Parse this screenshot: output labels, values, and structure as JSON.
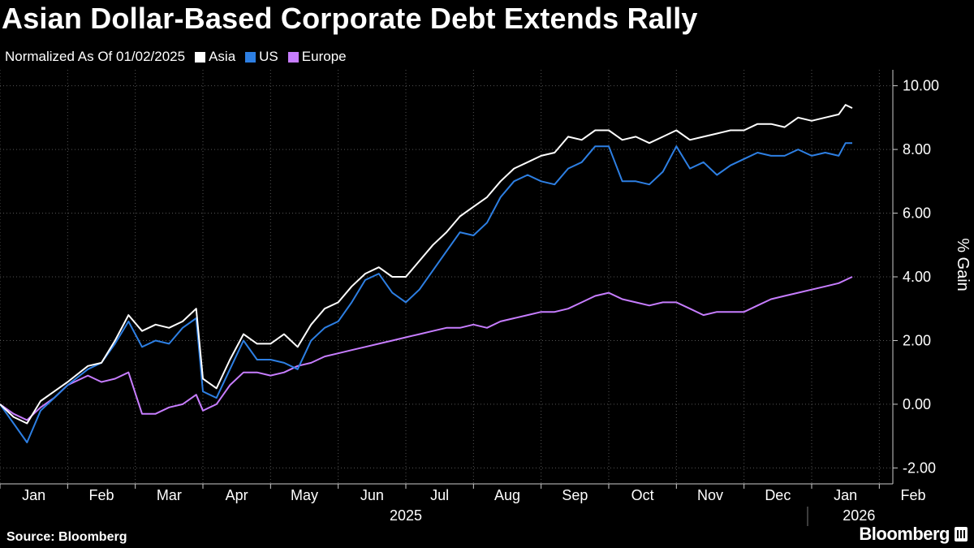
{
  "title": "Asian Dollar-Based Corporate Debt Extends Rally",
  "subtitle": "Normalized As Of 01/02/2025",
  "source": "Source: Bloomberg",
  "brand": "Bloomberg",
  "chart_data": {
    "type": "line",
    "ylabel": "% Gain",
    "ylim": [
      -2.5,
      10.5
    ],
    "yticks": [
      -2,
      0,
      2,
      4,
      6,
      8,
      10
    ],
    "ytick_labels": [
      "-2.00",
      "0.00",
      "2.00",
      "4.00",
      "6.00",
      "8.00",
      "10.00"
    ],
    "month_labels": [
      "Jan",
      "Feb",
      "Mar",
      "Apr",
      "May",
      "Jun",
      "Jul",
      "Aug",
      "Sep",
      "Oct",
      "Nov",
      "Dec",
      "Jan",
      "Feb"
    ],
    "year_labels": [
      "2025",
      "2026"
    ],
    "x_unit": "months since 01/02/2025",
    "grid": true,
    "series": [
      {
        "name": "Asia",
        "color": "#ffffff",
        "points": [
          [
            0,
            0
          ],
          [
            0.2,
            -0.4
          ],
          [
            0.4,
            -0.6
          ],
          [
            0.6,
            0.1
          ],
          [
            0.8,
            0.4
          ],
          [
            1,
            0.7
          ],
          [
            1.3,
            1.2
          ],
          [
            1.5,
            1.3
          ],
          [
            1.7,
            2.0
          ],
          [
            1.9,
            2.8
          ],
          [
            2.1,
            2.3
          ],
          [
            2.3,
            2.5
          ],
          [
            2.5,
            2.4
          ],
          [
            2.7,
            2.6
          ],
          [
            2.9,
            3.0
          ],
          [
            3.0,
            0.8
          ],
          [
            3.2,
            0.5
          ],
          [
            3.4,
            1.4
          ],
          [
            3.6,
            2.2
          ],
          [
            3.8,
            1.9
          ],
          [
            4.0,
            1.9
          ],
          [
            4.2,
            2.2
          ],
          [
            4.4,
            1.8
          ],
          [
            4.6,
            2.5
          ],
          [
            4.8,
            3.0
          ],
          [
            5.0,
            3.2
          ],
          [
            5.2,
            3.7
          ],
          [
            5.4,
            4.1
          ],
          [
            5.6,
            4.3
          ],
          [
            5.8,
            4.0
          ],
          [
            6.0,
            4.0
          ],
          [
            6.2,
            4.5
          ],
          [
            6.4,
            5.0
          ],
          [
            6.6,
            5.4
          ],
          [
            6.8,
            5.9
          ],
          [
            7.0,
            6.2
          ],
          [
            7.2,
            6.5
          ],
          [
            7.4,
            7.0
          ],
          [
            7.6,
            7.4
          ],
          [
            7.8,
            7.6
          ],
          [
            8.0,
            7.8
          ],
          [
            8.2,
            7.9
          ],
          [
            8.4,
            8.4
          ],
          [
            8.6,
            8.3
          ],
          [
            8.8,
            8.6
          ],
          [
            9.0,
            8.6
          ],
          [
            9.2,
            8.3
          ],
          [
            9.4,
            8.4
          ],
          [
            9.6,
            8.2
          ],
          [
            9.8,
            8.4
          ],
          [
            10.0,
            8.6
          ],
          [
            10.2,
            8.3
          ],
          [
            10.4,
            8.4
          ],
          [
            10.6,
            8.5
          ],
          [
            10.8,
            8.6
          ],
          [
            11.0,
            8.6
          ],
          [
            11.2,
            8.8
          ],
          [
            11.4,
            8.8
          ],
          [
            11.6,
            8.7
          ],
          [
            11.8,
            9.0
          ],
          [
            12.0,
            8.9
          ],
          [
            12.2,
            9.0
          ],
          [
            12.4,
            9.1
          ],
          [
            12.5,
            9.4
          ],
          [
            12.6,
            9.3
          ]
        ]
      },
      {
        "name": "US",
        "color": "#2d7fe3",
        "points": [
          [
            0,
            0
          ],
          [
            0.2,
            -0.6
          ],
          [
            0.4,
            -1.2
          ],
          [
            0.6,
            -0.2
          ],
          [
            0.8,
            0.2
          ],
          [
            1,
            0.6
          ],
          [
            1.3,
            1.1
          ],
          [
            1.5,
            1.3
          ],
          [
            1.7,
            1.9
          ],
          [
            1.9,
            2.6
          ],
          [
            2.1,
            1.8
          ],
          [
            2.3,
            2.0
          ],
          [
            2.5,
            1.9
          ],
          [
            2.7,
            2.4
          ],
          [
            2.9,
            2.7
          ],
          [
            3.0,
            0.4
          ],
          [
            3.2,
            0.2
          ],
          [
            3.4,
            1.1
          ],
          [
            3.6,
            2.0
          ],
          [
            3.8,
            1.4
          ],
          [
            4.0,
            1.4
          ],
          [
            4.2,
            1.3
          ],
          [
            4.4,
            1.1
          ],
          [
            4.6,
            2.0
          ],
          [
            4.8,
            2.4
          ],
          [
            5.0,
            2.6
          ],
          [
            5.2,
            3.2
          ],
          [
            5.4,
            3.9
          ],
          [
            5.6,
            4.1
          ],
          [
            5.8,
            3.5
          ],
          [
            6.0,
            3.2
          ],
          [
            6.2,
            3.6
          ],
          [
            6.4,
            4.2
          ],
          [
            6.6,
            4.8
          ],
          [
            6.8,
            5.4
          ],
          [
            7.0,
            5.3
          ],
          [
            7.2,
            5.7
          ],
          [
            7.4,
            6.5
          ],
          [
            7.6,
            7.0
          ],
          [
            7.8,
            7.2
          ],
          [
            8.0,
            7.0
          ],
          [
            8.2,
            6.9
          ],
          [
            8.4,
            7.4
          ],
          [
            8.6,
            7.6
          ],
          [
            8.8,
            8.1
          ],
          [
            9.0,
            8.1
          ],
          [
            9.2,
            7.0
          ],
          [
            9.4,
            7.0
          ],
          [
            9.6,
            6.9
          ],
          [
            9.8,
            7.3
          ],
          [
            10.0,
            8.1
          ],
          [
            10.2,
            7.4
          ],
          [
            10.4,
            7.6
          ],
          [
            10.6,
            7.2
          ],
          [
            10.8,
            7.5
          ],
          [
            11.0,
            7.7
          ],
          [
            11.2,
            7.9
          ],
          [
            11.4,
            7.8
          ],
          [
            11.6,
            7.8
          ],
          [
            11.8,
            8.0
          ],
          [
            12.0,
            7.8
          ],
          [
            12.2,
            7.9
          ],
          [
            12.4,
            7.8
          ],
          [
            12.5,
            8.2
          ],
          [
            12.6,
            8.2
          ]
        ]
      },
      {
        "name": "Europe",
        "color": "#c77dff",
        "points": [
          [
            0,
            0
          ],
          [
            0.2,
            -0.3
          ],
          [
            0.4,
            -0.5
          ],
          [
            0.6,
            -0.1
          ],
          [
            0.8,
            0.2
          ],
          [
            1,
            0.6
          ],
          [
            1.3,
            0.9
          ],
          [
            1.5,
            0.7
          ],
          [
            1.7,
            0.8
          ],
          [
            1.9,
            1.0
          ],
          [
            2.1,
            -0.3
          ],
          [
            2.3,
            -0.3
          ],
          [
            2.5,
            -0.1
          ],
          [
            2.7,
            0.0
          ],
          [
            2.9,
            0.3
          ],
          [
            3.0,
            -0.2
          ],
          [
            3.2,
            0.0
          ],
          [
            3.4,
            0.6
          ],
          [
            3.6,
            1.0
          ],
          [
            3.8,
            1.0
          ],
          [
            4.0,
            0.9
          ],
          [
            4.2,
            1.0
          ],
          [
            4.4,
            1.2
          ],
          [
            4.6,
            1.3
          ],
          [
            4.8,
            1.5
          ],
          [
            5.0,
            1.6
          ],
          [
            5.2,
            1.7
          ],
          [
            5.4,
            1.8
          ],
          [
            5.6,
            1.9
          ],
          [
            5.8,
            2.0
          ],
          [
            6.0,
            2.1
          ],
          [
            6.2,
            2.2
          ],
          [
            6.4,
            2.3
          ],
          [
            6.6,
            2.4
          ],
          [
            6.8,
            2.4
          ],
          [
            7.0,
            2.5
          ],
          [
            7.2,
            2.4
          ],
          [
            7.4,
            2.6
          ],
          [
            7.6,
            2.7
          ],
          [
            7.8,
            2.8
          ],
          [
            8.0,
            2.9
          ],
          [
            8.2,
            2.9
          ],
          [
            8.4,
            3.0
          ],
          [
            8.6,
            3.2
          ],
          [
            8.8,
            3.4
          ],
          [
            9.0,
            3.5
          ],
          [
            9.2,
            3.3
          ],
          [
            9.4,
            3.2
          ],
          [
            9.6,
            3.1
          ],
          [
            9.8,
            3.2
          ],
          [
            10.0,
            3.2
          ],
          [
            10.2,
            3.0
          ],
          [
            10.4,
            2.8
          ],
          [
            10.6,
            2.9
          ],
          [
            10.8,
            2.9
          ],
          [
            11.0,
            2.9
          ],
          [
            11.2,
            3.1
          ],
          [
            11.4,
            3.3
          ],
          [
            11.6,
            3.4
          ],
          [
            11.8,
            3.5
          ],
          [
            12.0,
            3.6
          ],
          [
            12.2,
            3.7
          ],
          [
            12.4,
            3.8
          ],
          [
            12.5,
            3.9
          ],
          [
            12.6,
            4.0
          ]
        ]
      }
    ]
  }
}
